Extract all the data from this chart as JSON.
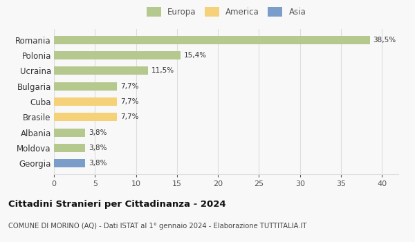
{
  "categories": [
    "Romania",
    "Polonia",
    "Ucraina",
    "Bulgaria",
    "Cuba",
    "Brasile",
    "Albania",
    "Moldova",
    "Georgia"
  ],
  "values": [
    38.5,
    15.4,
    11.5,
    7.7,
    7.7,
    7.7,
    3.8,
    3.8,
    3.8
  ],
  "labels": [
    "38,5%",
    "15,4%",
    "11,5%",
    "7,7%",
    "7,7%",
    "7,7%",
    "3,8%",
    "3,8%",
    "3,8%"
  ],
  "colors": [
    "#b5c98e",
    "#b5c98e",
    "#b5c98e",
    "#b5c98e",
    "#f5d17a",
    "#f5d17a",
    "#b5c98e",
    "#b5c98e",
    "#7b9dc9"
  ],
  "legend": [
    {
      "label": "Europa",
      "color": "#b5c98e"
    },
    {
      "label": "America",
      "color": "#f5d17a"
    },
    {
      "label": "Asia",
      "color": "#7b9dc9"
    }
  ],
  "xlim": [
    0,
    42
  ],
  "xticks": [
    0,
    5,
    10,
    15,
    20,
    25,
    30,
    35,
    40
  ],
  "title": "Cittadini Stranieri per Cittadinanza - 2024",
  "subtitle": "COMUNE DI MORINO (AQ) - Dati ISTAT al 1° gennaio 2024 - Elaborazione TUTTITALIA.IT",
  "background_color": "#f8f8f8",
  "grid_color": "#dddddd"
}
